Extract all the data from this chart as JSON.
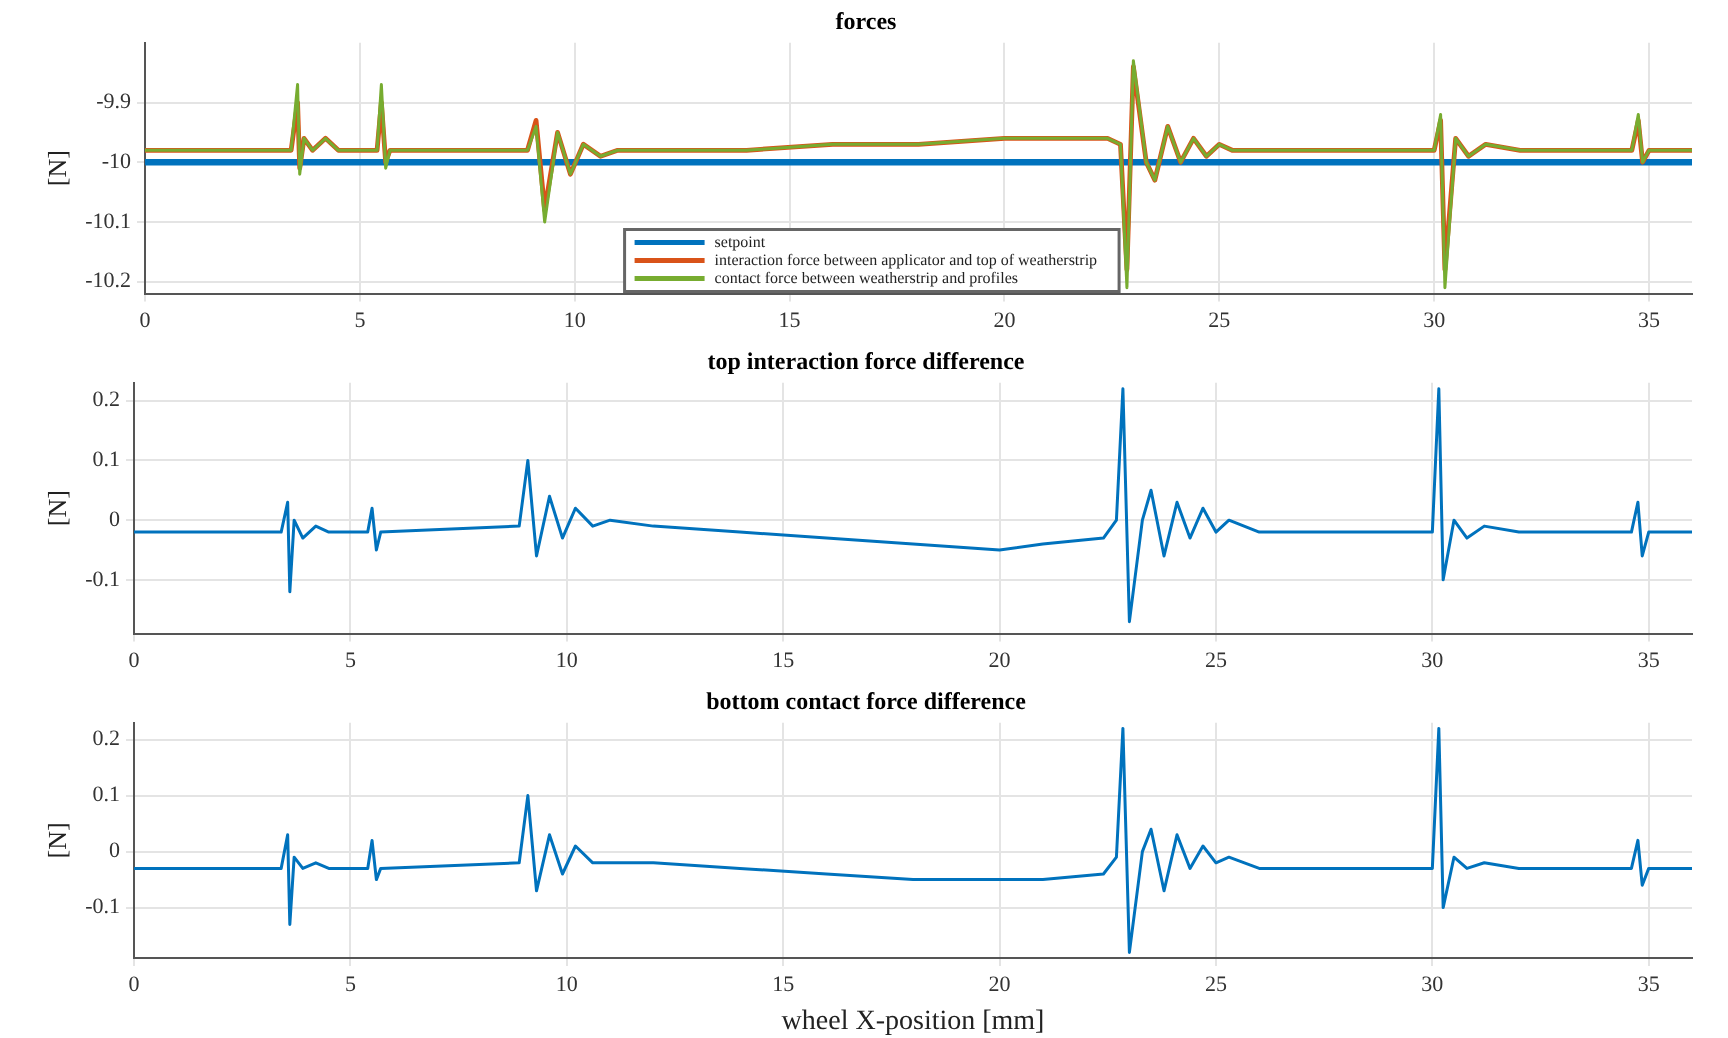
{
  "chart_data": [
    {
      "type": "line",
      "title": "forces",
      "ylabel": "[N]",
      "legend": "bottom left",
      "grid": true,
      "line_style": "solid",
      "marker": "none",
      "x": [
        0,
        3.4,
        3.55,
        3.6,
        3.7,
        3.9,
        4.2,
        4.5,
        5.4,
        5.5,
        5.6,
        5.7,
        8.9,
        9.1,
        9.3,
        9.6,
        9.9,
        10.2,
        10.6,
        11,
        12,
        14,
        16,
        18,
        20,
        21,
        22.4,
        22.7,
        22.85,
        23,
        23.3,
        23.5,
        23.8,
        24.1,
        24.4,
        24.7,
        25,
        25.3,
        26,
        27,
        30,
        30.15,
        30.25,
        30.5,
        30.8,
        31.2,
        32,
        34.6,
        34.75,
        34.85,
        35,
        36
      ],
      "xlim": [
        0,
        36
      ],
      "xticks": [
        0,
        5,
        10,
        15,
        20,
        25,
        30,
        35
      ],
      "ylim": [
        -10.22,
        -9.8
      ],
      "yticks": [
        -9.9,
        -10,
        -10.1,
        -10.2
      ],
      "series": [
        {
          "name": "setpoint",
          "color": "#0072bd",
          "values": [
            -10,
            -10,
            -10,
            -10,
            -10,
            -10,
            -10,
            -10,
            -10,
            -10,
            -10,
            -10,
            -10,
            -10,
            -10,
            -10,
            -10,
            -10,
            -10,
            -10,
            -10,
            -10,
            -10,
            -10,
            -10,
            -10,
            -10,
            -10,
            -10,
            -10,
            -10,
            -10,
            -10,
            -10,
            -10,
            -10,
            -10,
            -10,
            -10,
            -10,
            -10,
            -10,
            -10,
            -10,
            -10,
            -10,
            -10,
            -10,
            -10,
            -10,
            -10,
            -10
          ]
        },
        {
          "name": "interaction force between applicator and top of weatherstrip",
          "color": "#d95319",
          "values": [
            -9.98,
            -9.98,
            -9.9,
            -10.01,
            -9.96,
            -9.98,
            -9.96,
            -9.98,
            -9.98,
            -9.9,
            -10.0,
            -9.98,
            -9.98,
            -9.93,
            -10.08,
            -9.95,
            -10.02,
            -9.97,
            -9.99,
            -9.98,
            -9.98,
            -9.98,
            -9.97,
            -9.97,
            -9.96,
            -9.96,
            -9.96,
            -9.97,
            -10.18,
            -9.84,
            -10.0,
            -10.03,
            -9.94,
            -10.0,
            -9.96,
            -9.99,
            -9.97,
            -9.98,
            -9.98,
            -9.98,
            -9.98,
            -9.93,
            -10.18,
            -9.96,
            -9.99,
            -9.97,
            -9.98,
            -9.98,
            -9.93,
            -10.0,
            -9.98,
            -9.98
          ]
        },
        {
          "name": "contact force between weatherstrip and profiles",
          "color": "#77ac30",
          "values": [
            -9.98,
            -9.98,
            -9.87,
            -10.02,
            -9.96,
            -9.98,
            -9.96,
            -9.98,
            -9.98,
            -9.87,
            -10.01,
            -9.98,
            -9.98,
            -9.94,
            -10.1,
            -9.95,
            -10.02,
            -9.97,
            -9.99,
            -9.98,
            -9.98,
            -9.98,
            -9.97,
            -9.97,
            -9.96,
            -9.96,
            -9.96,
            -9.97,
            -10.21,
            -9.83,
            -10.0,
            -10.03,
            -9.94,
            -10.0,
            -9.96,
            -9.99,
            -9.97,
            -9.98,
            -9.98,
            -9.98,
            -9.98,
            -9.92,
            -10.21,
            -9.96,
            -9.99,
            -9.97,
            -9.98,
            -9.98,
            -9.92,
            -10.0,
            -9.98,
            -9.98
          ]
        }
      ]
    },
    {
      "type": "line",
      "title": "top interaction force difference",
      "ylabel": "[N]",
      "legend": false,
      "grid": true,
      "line_style": "solid",
      "marker": "none",
      "x": [
        0,
        3.4,
        3.55,
        3.6,
        3.7,
        3.9,
        4.2,
        4.5,
        5.4,
        5.5,
        5.6,
        5.7,
        8.9,
        9.1,
        9.3,
        9.6,
        9.9,
        10.2,
        10.6,
        11,
        12,
        14,
        16,
        18,
        20,
        21,
        22.4,
        22.7,
        22.85,
        23,
        23.3,
        23.5,
        23.8,
        24.1,
        24.4,
        24.7,
        25,
        25.3,
        26,
        27,
        30,
        30.15,
        30.25,
        30.5,
        30.8,
        31.2,
        32,
        34.6,
        34.75,
        34.85,
        35,
        36
      ],
      "xlim": [
        0,
        36
      ],
      "xticks": [
        0,
        5,
        10,
        15,
        20,
        25,
        30,
        35
      ],
      "ylim": [
        -0.19,
        0.23
      ],
      "yticks": [
        0.2,
        0.1,
        0,
        -0.1
      ],
      "series": [
        {
          "color": "#0072bd",
          "values": [
            -0.02,
            -0.02,
            0.03,
            -0.12,
            0,
            -0.03,
            -0.01,
            -0.02,
            -0.02,
            0.02,
            -0.05,
            -0.02,
            -0.01,
            0.1,
            -0.06,
            0.04,
            -0.03,
            0.02,
            -0.01,
            0,
            -0.01,
            -0.02,
            -0.03,
            -0.04,
            -0.05,
            -0.04,
            -0.03,
            0,
            0.22,
            -0.17,
            0,
            0.05,
            -0.06,
            0.03,
            -0.03,
            0.02,
            -0.02,
            0,
            -0.02,
            -0.02,
            -0.02,
            0.22,
            -0.1,
            0,
            -0.03,
            -0.01,
            -0.02,
            -0.02,
            0.03,
            -0.06,
            -0.02,
            -0.02
          ]
        }
      ]
    },
    {
      "type": "line",
      "title": "bottom contact force difference",
      "xlabel": "wheel X-position [mm]",
      "ylabel": "[N]",
      "legend": false,
      "grid": true,
      "line_style": "solid",
      "marker": "none",
      "x": [
        0,
        3.4,
        3.55,
        3.6,
        3.7,
        3.9,
        4.2,
        4.5,
        5.4,
        5.5,
        5.6,
        5.7,
        8.9,
        9.1,
        9.3,
        9.6,
        9.9,
        10.2,
        10.6,
        11,
        12,
        14,
        16,
        18,
        20,
        21,
        22.4,
        22.7,
        22.85,
        23,
        23.3,
        23.5,
        23.8,
        24.1,
        24.4,
        24.7,
        25,
        25.3,
        26,
        27,
        30,
        30.15,
        30.25,
        30.5,
        30.8,
        31.2,
        32,
        34.6,
        34.75,
        34.85,
        35,
        36
      ],
      "xlim": [
        0,
        36
      ],
      "xticks": [
        0,
        5,
        10,
        15,
        20,
        25,
        30,
        35
      ],
      "ylim": [
        -0.19,
        0.23
      ],
      "yticks": [
        0.2,
        0.1,
        0,
        -0.1
      ],
      "series": [
        {
          "color": "#0072bd",
          "values": [
            -0.03,
            -0.03,
            0.03,
            -0.13,
            -0.01,
            -0.03,
            -0.02,
            -0.03,
            -0.03,
            0.02,
            -0.05,
            -0.03,
            -0.02,
            0.1,
            -0.07,
            0.03,
            -0.04,
            0.01,
            -0.02,
            -0.02,
            -0.02,
            -0.03,
            -0.04,
            -0.05,
            -0.05,
            -0.05,
            -0.04,
            -0.01,
            0.22,
            -0.18,
            0,
            0.04,
            -0.07,
            0.03,
            -0.03,
            0.01,
            -0.02,
            -0.01,
            -0.03,
            -0.03,
            -0.03,
            0.22,
            -0.1,
            -0.01,
            -0.03,
            -0.02,
            -0.03,
            -0.03,
            0.02,
            -0.06,
            -0.03,
            -0.03
          ]
        }
      ]
    }
  ]
}
